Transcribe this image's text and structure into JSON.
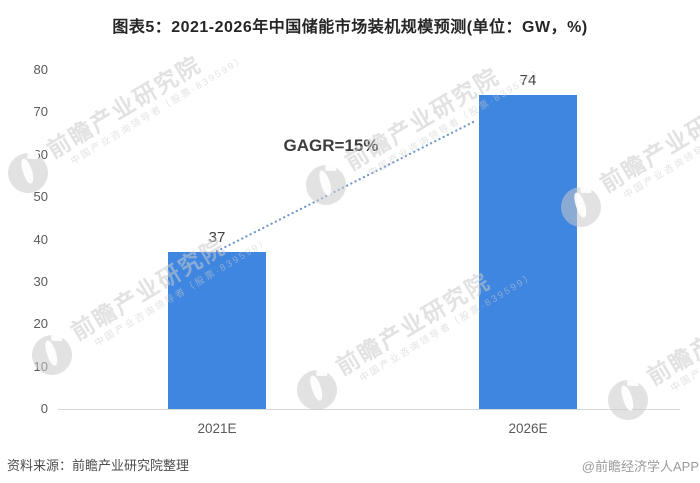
{
  "title": "图表5：2021-2026年中国储能市场装机规模预测(单位：GW，%)",
  "annotation": {
    "label": "GAGR=15%"
  },
  "footer": {
    "source": "资料来源：前瞻产业研究院整理",
    "credit": "@前瞻经济学人APP"
  },
  "watermark": {
    "logo": "qianzhan-logo-icon",
    "main_text": "前瞻产业研究院",
    "sub_text": "中国产业咨询领导者（股票·839599）"
  },
  "colors": {
    "bar": "#3E86E0",
    "trend_line": "#5585C2",
    "axis_line": "#D8D8D8",
    "tick_label": "#595959",
    "value_label": "#404040",
    "title_text": "#262626",
    "source_text": "#4D4D4D",
    "credit_text": "#9A9A9A",
    "watermark": "#DCDCDC"
  },
  "chart_data": {
    "type": "bar",
    "title": "图表5：2021-2026年中国储能市场装机规模预测(单位：GW，%)",
    "categories": [
      "2021E",
      "2026E"
    ],
    "values": [
      37,
      74
    ],
    "unit": "GW",
    "xlabel": "",
    "ylabel": "",
    "ylim": [
      0,
      80
    ],
    "yticks": [
      0,
      10,
      20,
      30,
      40,
      50,
      60,
      70,
      80
    ],
    "annotation": "GAGR=15%",
    "annotation_meaning": "compound annual growth rate 15% between 2021E and 2026E",
    "grid": false,
    "legend": false,
    "bar_color": "#3E86E0"
  }
}
